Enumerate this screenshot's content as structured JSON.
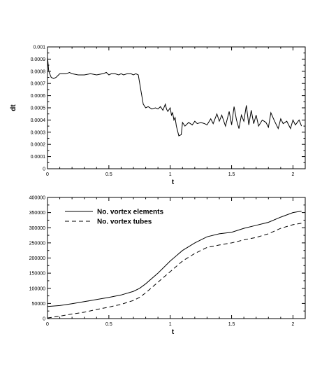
{
  "chart_data": [
    {
      "type": "line",
      "xlabel": "t",
      "ylabel": "dt",
      "xlim": [
        0,
        2.1
      ],
      "ylim": [
        0,
        0.001
      ],
      "xticks": [
        "0",
        "0.5",
        "1",
        "1.5",
        "2"
      ],
      "yticks": [
        "0",
        "0.0001",
        "0.0002",
        "0.0003",
        "0.0004",
        "0.0005",
        "0.0006",
        "0.0007",
        "0.0008",
        "0.0009",
        "0.001"
      ],
      "series": [
        {
          "values": [
            [
              0.0,
              0.00092
            ],
            [
              0.01,
              0.0008
            ],
            [
              0.03,
              0.00075
            ],
            [
              0.05,
              0.00074
            ],
            [
              0.07,
              0.00075
            ],
            [
              0.1,
              0.00078
            ],
            [
              0.12,
              0.00078
            ],
            [
              0.15,
              0.00078
            ],
            [
              0.18,
              0.00079
            ],
            [
              0.2,
              0.00078
            ],
            [
              0.25,
              0.00077
            ],
            [
              0.3,
              0.00077
            ],
            [
              0.35,
              0.00078
            ],
            [
              0.4,
              0.00077
            ],
            [
              0.45,
              0.00078
            ],
            [
              0.48,
              0.00079
            ],
            [
              0.5,
              0.00077
            ],
            [
              0.52,
              0.00078
            ],
            [
              0.55,
              0.00078
            ],
            [
              0.58,
              0.00077
            ],
            [
              0.6,
              0.00078
            ],
            [
              0.62,
              0.00077
            ],
            [
              0.65,
              0.00078
            ],
            [
              0.68,
              0.00078
            ],
            [
              0.7,
              0.00077
            ],
            [
              0.72,
              0.00078
            ],
            [
              0.74,
              0.00077
            ],
            [
              0.76,
              0.00065
            ],
            [
              0.78,
              0.00053
            ],
            [
              0.8,
              0.0005
            ],
            [
              0.82,
              0.00051
            ],
            [
              0.85,
              0.00049
            ],
            [
              0.88,
              0.0005
            ],
            [
              0.9,
              0.00049
            ],
            [
              0.92,
              0.00051
            ],
            [
              0.94,
              0.00048
            ],
            [
              0.96,
              0.00053
            ],
            [
              0.97,
              0.00049
            ],
            [
              0.98,
              0.00047
            ],
            [
              1.0,
              0.0005
            ],
            [
              1.01,
              0.00044
            ],
            [
              1.02,
              0.00046
            ],
            [
              1.03,
              0.0004
            ],
            [
              1.04,
              0.00042
            ],
            [
              1.05,
              0.00035
            ],
            [
              1.06,
              0.00031
            ],
            [
              1.07,
              0.00027
            ],
            [
              1.09,
              0.00028
            ],
            [
              1.1,
              0.00038
            ],
            [
              1.12,
              0.00035
            ],
            [
              1.15,
              0.00038
            ],
            [
              1.18,
              0.00036
            ],
            [
              1.2,
              0.00039
            ],
            [
              1.22,
              0.00037
            ],
            [
              1.25,
              0.00038
            ],
            [
              1.28,
              0.00037
            ],
            [
              1.3,
              0.00036
            ],
            [
              1.33,
              0.00041
            ],
            [
              1.35,
              0.00037
            ],
            [
              1.38,
              0.00045
            ],
            [
              1.4,
              0.00039
            ],
            [
              1.42,
              0.00044
            ],
            [
              1.45,
              0.00035
            ],
            [
              1.48,
              0.00047
            ],
            [
              1.5,
              0.00036
            ],
            [
              1.52,
              0.00051
            ],
            [
              1.54,
              0.0004
            ],
            [
              1.56,
              0.00033
            ],
            [
              1.58,
              0.00044
            ],
            [
              1.6,
              0.00039
            ],
            [
              1.62,
              0.00052
            ],
            [
              1.64,
              0.00036
            ],
            [
              1.66,
              0.00048
            ],
            [
              1.68,
              0.00037
            ],
            [
              1.7,
              0.00044
            ],
            [
              1.72,
              0.00035
            ],
            [
              1.75,
              0.0004
            ],
            [
              1.78,
              0.00038
            ],
            [
              1.8,
              0.00034
            ],
            [
              1.82,
              0.00046
            ],
            [
              1.85,
              0.00039
            ],
            [
              1.88,
              0.00033
            ],
            [
              1.9,
              0.00041
            ],
            [
              1.92,
              0.00037
            ],
            [
              1.95,
              0.00039
            ],
            [
              1.98,
              0.00033
            ],
            [
              2.0,
              0.0004
            ],
            [
              2.02,
              0.00036
            ],
            [
              2.05,
              0.0004
            ],
            [
              2.07,
              0.00035
            ]
          ]
        }
      ]
    },
    {
      "type": "line",
      "xlabel": "t",
      "ylabel": "",
      "xlim": [
        0,
        2.1
      ],
      "ylim": [
        0,
        400000
      ],
      "xticks": [
        "0",
        "0.5",
        "1",
        "1.5",
        "2"
      ],
      "yticks": [
        "0",
        "50000",
        "100000",
        "150000",
        "200000",
        "250000",
        "300000",
        "350000",
        "400000"
      ],
      "legend": "top-left",
      "series": [
        {
          "name": "No. vortex elements",
          "style": "solid",
          "values": [
            [
              0.0,
              40000
            ],
            [
              0.1,
              43000
            ],
            [
              0.2,
              49000
            ],
            [
              0.3,
              56000
            ],
            [
              0.4,
              63000
            ],
            [
              0.5,
              70000
            ],
            [
              0.6,
              78000
            ],
            [
              0.7,
              90000
            ],
            [
              0.75,
              100000
            ],
            [
              0.8,
              115000
            ],
            [
              0.9,
              150000
            ],
            [
              1.0,
              190000
            ],
            [
              1.1,
              225000
            ],
            [
              1.2,
              250000
            ],
            [
              1.3,
              270000
            ],
            [
              1.4,
              280000
            ],
            [
              1.5,
              285000
            ],
            [
              1.6,
              298000
            ],
            [
              1.7,
              308000
            ],
            [
              1.8,
              318000
            ],
            [
              1.9,
              335000
            ],
            [
              2.0,
              350000
            ],
            [
              2.07,
              355000
            ]
          ]
        },
        {
          "name": "No. vortex tubes",
          "style": "dashed",
          "values": [
            [
              0.0,
              2000
            ],
            [
              0.1,
              8000
            ],
            [
              0.2,
              15000
            ],
            [
              0.3,
              21000
            ],
            [
              0.4,
              30000
            ],
            [
              0.5,
              38000
            ],
            [
              0.6,
              47000
            ],
            [
              0.7,
              60000
            ],
            [
              0.75,
              70000
            ],
            [
              0.8,
              85000
            ],
            [
              0.9,
              120000
            ],
            [
              1.0,
              155000
            ],
            [
              1.1,
              190000
            ],
            [
              1.2,
              215000
            ],
            [
              1.3,
              235000
            ],
            [
              1.4,
              243000
            ],
            [
              1.5,
              250000
            ],
            [
              1.6,
              260000
            ],
            [
              1.7,
              268000
            ],
            [
              1.8,
              280000
            ],
            [
              1.9,
              298000
            ],
            [
              2.0,
              310000
            ],
            [
              2.07,
              315000
            ]
          ]
        }
      ]
    }
  ]
}
